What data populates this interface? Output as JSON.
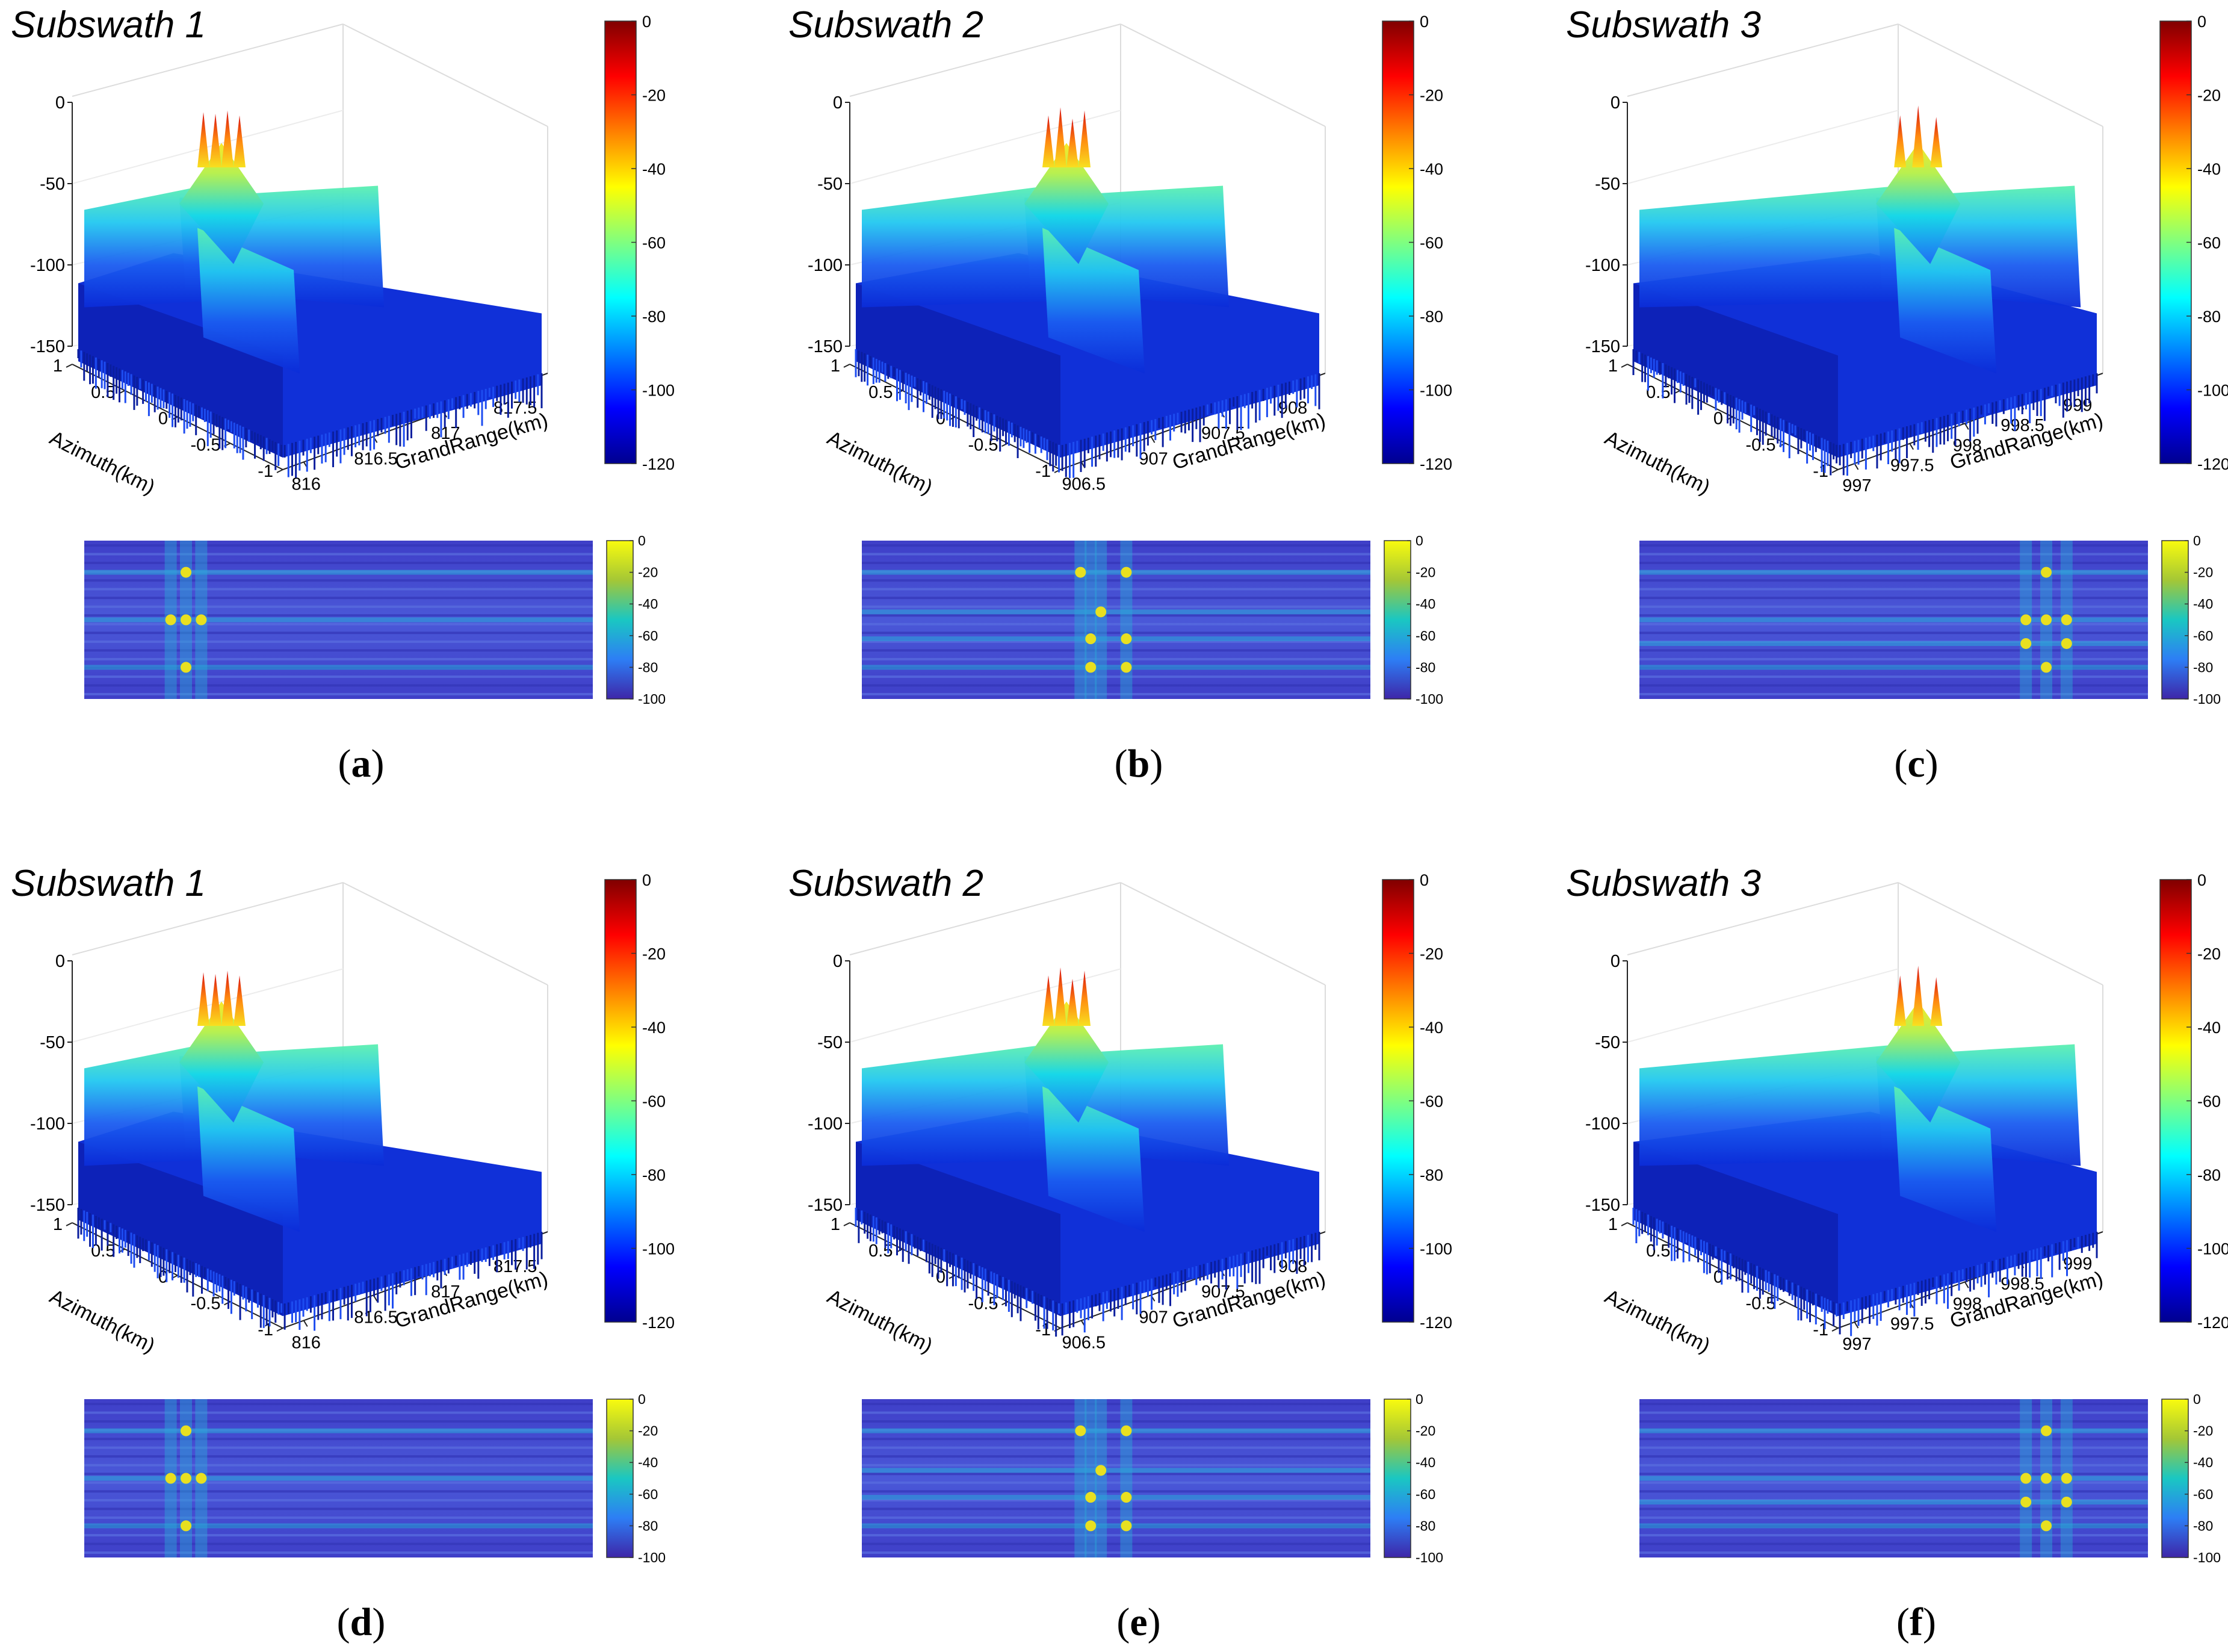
{
  "chart_data": [
    {
      "id": "a",
      "panel_label": "a",
      "type": "surface",
      "title": "Subswath 1",
      "zlabel": "",
      "xlabel": "GrandRange(km)",
      "ylabel": "Azimuth(km)",
      "xticks": [
        "816",
        "816.5",
        "817",
        "817.5"
      ],
      "yticks": [
        "1",
        "0.5",
        "0",
        "-0.5",
        "-1"
      ],
      "zticks": [
        "0",
        "-50",
        "-100",
        "-150"
      ],
      "zlim": [
        -150,
        0
      ],
      "colorbar": {
        "ticks": [
          "0",
          "-20",
          "-40",
          "-60",
          "-80",
          "-100",
          "-120"
        ],
        "range": [
          -120,
          0
        ]
      },
      "peaks_db": [
        -6,
        -7,
        -5,
        -8
      ],
      "peak_position": 0.3,
      "map": {
        "type": "heatmap",
        "colorbar": {
          "ticks": [
            "0",
            "-20",
            "-40",
            "-60",
            "-80",
            "-100"
          ],
          "range": [
            -100,
            0
          ]
        },
        "point_targets": [
          [
            0.2,
            0.2
          ],
          [
            0.2,
            0.5
          ],
          [
            0.17,
            0.5
          ],
          [
            0.23,
            0.5
          ],
          [
            0.2,
            0.8
          ]
        ]
      }
    },
    {
      "id": "b",
      "panel_label": "b",
      "type": "surface",
      "title": "Subswath 2",
      "xlabel": "GrandRange(km)",
      "ylabel": "Azimuth(km)",
      "xticks": [
        "906.5",
        "907",
        "907.5",
        "908"
      ],
      "yticks": [
        "1",
        "0.5",
        "0",
        "-0.5",
        "-1"
      ],
      "zticks": [
        "0",
        "-50",
        "-100",
        "-150"
      ],
      "zlim": [
        -150,
        0
      ],
      "colorbar": {
        "ticks": [
          "0",
          "-20",
          "-40",
          "-60",
          "-80",
          "-100",
          "-120"
        ],
        "range": [
          -120,
          0
        ]
      },
      "peaks_db": [
        -8,
        -3,
        -10,
        -5
      ],
      "peak_position": 0.5,
      "map": {
        "type": "heatmap",
        "colorbar": {
          "ticks": [
            "0",
            "-20",
            "-40",
            "-60",
            "-80",
            "-100"
          ],
          "range": [
            -100,
            0
          ]
        },
        "point_targets": [
          [
            0.43,
            0.2
          ],
          [
            0.52,
            0.2
          ],
          [
            0.47,
            0.45
          ],
          [
            0.45,
            0.62
          ],
          [
            0.52,
            0.62
          ],
          [
            0.45,
            0.8
          ],
          [
            0.52,
            0.8
          ]
        ]
      }
    },
    {
      "id": "c",
      "panel_label": "c",
      "type": "surface",
      "title": "Subswath 3",
      "xlabel": "GrandRange(km)",
      "ylabel": "Azimuth(km)",
      "xticks": [
        "997",
        "997.5",
        "998",
        "998.5",
        "999"
      ],
      "yticks": [
        "1",
        "0.5",
        "0",
        "-0.5",
        "-1"
      ],
      "zticks": [
        "0",
        "-50",
        "-100",
        "-150"
      ],
      "zlim": [
        -150,
        0
      ],
      "colorbar": {
        "ticks": [
          "0",
          "-20",
          "-40",
          "-60",
          "-80",
          "-100",
          "-120"
        ],
        "range": [
          -120,
          0
        ]
      },
      "peaks_db": [
        -8,
        -2,
        -9
      ],
      "peak_position": 0.72,
      "map": {
        "type": "heatmap",
        "colorbar": {
          "ticks": [
            "0",
            "-20",
            "-40",
            "-60",
            "-80",
            "-100"
          ],
          "range": [
            -100,
            0
          ]
        },
        "point_targets": [
          [
            0.8,
            0.2
          ],
          [
            0.8,
            0.5
          ],
          [
            0.76,
            0.5
          ],
          [
            0.84,
            0.5
          ],
          [
            0.8,
            0.8
          ],
          [
            0.76,
            0.65
          ],
          [
            0.84,
            0.65
          ]
        ]
      }
    },
    {
      "id": "d",
      "panel_label": "d",
      "type": "surface",
      "title": "Subswath 1",
      "xlabel": "GrandRange(km)",
      "ylabel": "Azimuth(km)",
      "xticks": [
        "816",
        "816.5",
        "817",
        "817.5"
      ],
      "yticks": [
        "1",
        "0.5",
        "0",
        "-0.5",
        "-1"
      ],
      "zticks": [
        "0",
        "-50",
        "-100",
        "-150"
      ],
      "zlim": [
        -150,
        0
      ],
      "colorbar": {
        "ticks": [
          "0",
          "-20",
          "-40",
          "-60",
          "-80",
          "-100",
          "-120"
        ],
        "range": [
          -120,
          0
        ]
      },
      "peaks_db": [
        -7,
        -8,
        -6,
        -9
      ],
      "peak_position": 0.3,
      "map": {
        "type": "heatmap",
        "colorbar": {
          "ticks": [
            "0",
            "-20",
            "-40",
            "-60",
            "-80",
            "-100"
          ],
          "range": [
            -100,
            0
          ]
        },
        "point_targets": [
          [
            0.2,
            0.2
          ],
          [
            0.2,
            0.5
          ],
          [
            0.17,
            0.5
          ],
          [
            0.23,
            0.5
          ],
          [
            0.2,
            0.8
          ]
        ]
      }
    },
    {
      "id": "e",
      "panel_label": "e",
      "type": "surface",
      "title": "Subswath 2",
      "xlabel": "GrandRange(km)",
      "ylabel": "Azimuth(km)",
      "xticks": [
        "906.5",
        "907",
        "907.5",
        "908"
      ],
      "yticks": [
        "1",
        "0.5",
        "0",
        "-0.5",
        "-1"
      ],
      "zticks": [
        "0",
        "-50",
        "-100",
        "-150"
      ],
      "zlim": [
        -150,
        0
      ],
      "colorbar": {
        "ticks": [
          "0",
          "-20",
          "-40",
          "-60",
          "-80",
          "-100",
          "-120"
        ],
        "range": [
          -120,
          0
        ]
      },
      "peaks_db": [
        -9,
        -4,
        -11,
        -6
      ],
      "peak_position": 0.5,
      "map": {
        "type": "heatmap",
        "colorbar": {
          "ticks": [
            "0",
            "-20",
            "-40",
            "-60",
            "-80",
            "-100"
          ],
          "range": [
            -100,
            0
          ]
        },
        "point_targets": [
          [
            0.43,
            0.2
          ],
          [
            0.52,
            0.2
          ],
          [
            0.47,
            0.45
          ],
          [
            0.45,
            0.62
          ],
          [
            0.52,
            0.62
          ],
          [
            0.45,
            0.8
          ],
          [
            0.52,
            0.8
          ]
        ]
      }
    },
    {
      "id": "f",
      "panel_label": "f",
      "type": "surface",
      "title": "Subswath 3",
      "xlabel": "GrandRange(km)",
      "ylabel": "Azimuth(km)",
      "xticks": [
        "997",
        "997.5",
        "998",
        "998.5",
        "999"
      ],
      "yticks": [
        "1",
        "0.5",
        "0",
        "-0.5",
        "-1"
      ],
      "zticks": [
        "0",
        "-50",
        "-100",
        "-150"
      ],
      "zlim": [
        -150,
        0
      ],
      "colorbar": {
        "ticks": [
          "0",
          "-20",
          "-40",
          "-60",
          "-80",
          "-100",
          "-120"
        ],
        "range": [
          -120,
          0
        ]
      },
      "peaks_db": [
        -9,
        -3,
        -10
      ],
      "peak_position": 0.72,
      "map": {
        "type": "heatmap",
        "colorbar": {
          "ticks": [
            "0",
            "-20",
            "-40",
            "-60",
            "-80",
            "-100"
          ],
          "range": [
            -100,
            0
          ]
        },
        "point_targets": [
          [
            0.8,
            0.2
          ],
          [
            0.8,
            0.5
          ],
          [
            0.76,
            0.5
          ],
          [
            0.84,
            0.5
          ],
          [
            0.8,
            0.8
          ],
          [
            0.76,
            0.65
          ],
          [
            0.84,
            0.65
          ]
        ]
      }
    }
  ]
}
